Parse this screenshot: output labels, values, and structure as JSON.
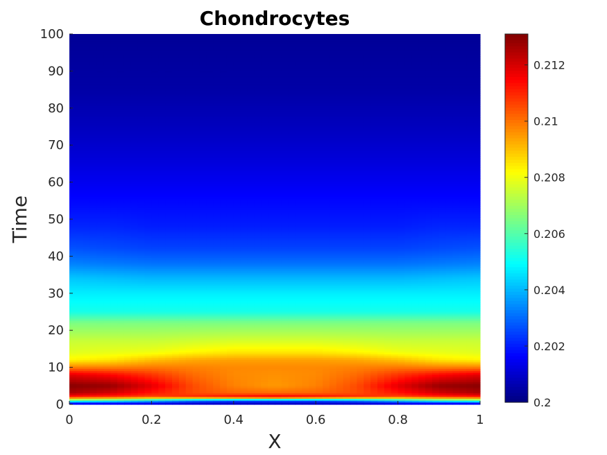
{
  "chart_data": {
    "type": "heatmap",
    "title": "Chondrocytes",
    "xlabel": "X",
    "ylabel": "Time",
    "xlim": [
      0,
      1
    ],
    "ylim": [
      0,
      100
    ],
    "x_ticks": [
      "0",
      "0.2",
      "0.4",
      "0.6",
      "0.8",
      "1"
    ],
    "y_ticks": [
      "0",
      "10",
      "20",
      "30",
      "40",
      "50",
      "60",
      "70",
      "80",
      "90",
      "100"
    ],
    "colormap": "jet",
    "color_range": [
      0.2,
      0.2131
    ],
    "colorbar_ticks": [
      "0.2",
      "0.202",
      "0.204",
      "0.206",
      "0.208",
      "0.21",
      "0.212"
    ],
    "x_samples": [
      0,
      0.1,
      0.2,
      0.3,
      0.4,
      0.5,
      0.6,
      0.7,
      0.8,
      0.9,
      1
    ],
    "rows": [
      {
        "time": 0,
        "values": [
          0.2004,
          0.2004,
          0.2004,
          0.2003,
          0.2003,
          0.2003,
          0.2003,
          0.2003,
          0.2004,
          0.2004,
          0.2004
        ]
      },
      {
        "time": 1,
        "values": [
          0.206,
          0.2055,
          0.2045,
          0.2035,
          0.203,
          0.203,
          0.203,
          0.2035,
          0.2045,
          0.2055,
          0.206
        ]
      },
      {
        "time": 2,
        "values": [
          0.211,
          0.2108,
          0.2105,
          0.211,
          0.2115,
          0.2118,
          0.2115,
          0.211,
          0.2105,
          0.2108,
          0.211
        ]
      },
      {
        "time": 3,
        "values": [
          0.2125,
          0.212,
          0.2112,
          0.2105,
          0.2102,
          0.2101,
          0.2102,
          0.2105,
          0.2112,
          0.212,
          0.2125
        ]
      },
      {
        "time": 5,
        "values": [
          0.213,
          0.2128,
          0.2118,
          0.2105,
          0.2098,
          0.2095,
          0.2098,
          0.2105,
          0.2118,
          0.2128,
          0.213
        ]
      },
      {
        "time": 8,
        "values": [
          0.2118,
          0.2114,
          0.2108,
          0.2101,
          0.2097,
          0.2096,
          0.2097,
          0.2101,
          0.2108,
          0.2114,
          0.2118
        ]
      },
      {
        "time": 10,
        "values": [
          0.2098,
          0.2098,
          0.2099,
          0.2098,
          0.2097,
          0.2097,
          0.2097,
          0.2098,
          0.2099,
          0.2098,
          0.2098
        ]
      },
      {
        "time": 12,
        "values": [
          0.2083,
          0.2085,
          0.209,
          0.2093,
          0.2094,
          0.2094,
          0.2094,
          0.2093,
          0.209,
          0.2085,
          0.2083
        ]
      },
      {
        "time": 14,
        "values": [
          0.2078,
          0.2079,
          0.208,
          0.2083,
          0.2085,
          0.2085,
          0.2085,
          0.2083,
          0.208,
          0.2079,
          0.2078
        ]
      },
      {
        "time": 17,
        "values": [
          0.2075,
          0.2075,
          0.2075,
          0.2076,
          0.2077,
          0.2077,
          0.2077,
          0.2076,
          0.2075,
          0.2075,
          0.2075
        ]
      },
      {
        "time": 22,
        "values": [
          0.2065,
          0.2065,
          0.2065,
          0.2065,
          0.2065,
          0.2065,
          0.2065,
          0.2065,
          0.2065,
          0.2065,
          0.2065
        ]
      },
      {
        "time": 25,
        "values": [
          0.2052,
          0.2052,
          0.2052,
          0.2052,
          0.2052,
          0.2052,
          0.2052,
          0.2052,
          0.2052,
          0.2052,
          0.2052
        ]
      },
      {
        "time": 30,
        "values": [
          0.2047,
          0.2047,
          0.2047,
          0.2047,
          0.2047,
          0.2047,
          0.2047,
          0.2047,
          0.2047,
          0.2047,
          0.2047
        ]
      },
      {
        "time": 34,
        "values": [
          0.2042,
          0.2041,
          0.204,
          0.204,
          0.204,
          0.204,
          0.204,
          0.204,
          0.204,
          0.2041,
          0.2042
        ]
      },
      {
        "time": 38,
        "values": [
          0.2033,
          0.2032,
          0.2031,
          0.2031,
          0.2031,
          0.2031,
          0.2031,
          0.2031,
          0.2031,
          0.2032,
          0.2033
        ]
      },
      {
        "time": 42,
        "values": [
          0.2027,
          0.2026,
          0.2025,
          0.2025,
          0.2025,
          0.2025,
          0.2025,
          0.2025,
          0.2025,
          0.2026,
          0.2027
        ]
      },
      {
        "time": 48,
        "values": [
          0.2021,
          0.2021,
          0.202,
          0.202,
          0.202,
          0.202,
          0.202,
          0.202,
          0.202,
          0.2021,
          0.2021
        ]
      },
      {
        "time": 55,
        "values": [
          0.2017,
          0.2017,
          0.2017,
          0.2017,
          0.2017,
          0.2017,
          0.2017,
          0.2017,
          0.2017,
          0.2017,
          0.2017
        ]
      },
      {
        "time": 65,
        "values": [
          0.2012,
          0.2012,
          0.2012,
          0.2012,
          0.2012,
          0.2012,
          0.2012,
          0.2012,
          0.2012,
          0.2012,
          0.2012
        ]
      },
      {
        "time": 75,
        "values": [
          0.2008,
          0.2008,
          0.2008,
          0.2008,
          0.2008,
          0.2008,
          0.2008,
          0.2008,
          0.2008,
          0.2008,
          0.2008
        ]
      },
      {
        "time": 85,
        "values": [
          0.2005,
          0.2005,
          0.2005,
          0.2005,
          0.2005,
          0.2005,
          0.2005,
          0.2005,
          0.2005,
          0.2005,
          0.2005
        ]
      },
      {
        "time": 100,
        "values": [
          0.2003,
          0.2003,
          0.2003,
          0.2003,
          0.2003,
          0.2003,
          0.2003,
          0.2003,
          0.2003,
          0.2003,
          0.2003
        ]
      }
    ]
  }
}
